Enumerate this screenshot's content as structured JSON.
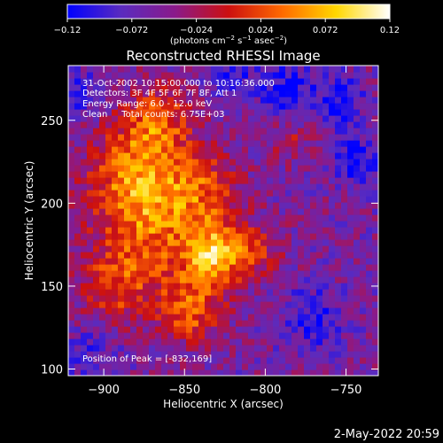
{
  "chart_data": {
    "type": "heatmap",
    "title": "Reconstructed RHESSI Image",
    "xlabel": "Heliocentric X (arcsec)",
    "ylabel": "Heliocentric Y (arcsec)",
    "xlim": [
      -922,
      -730
    ],
    "ylim": [
      96,
      283
    ],
    "x_ticks": [
      -900,
      -850,
      -800,
      -750
    ],
    "x_tick_labels": [
      "−900",
      "−850",
      "−800",
      "−750"
    ],
    "y_ticks": [
      100,
      150,
      200,
      250
    ],
    "y_tick_labels": [
      "100",
      "150",
      "200",
      "250"
    ],
    "colorbar": {
      "range": [
        -0.12,
        0.12
      ],
      "ticks": [
        -0.12,
        -0.072,
        -0.024,
        0.024,
        0.072,
        0.12
      ],
      "tick_labels": [
        "−0.12",
        "−0.072",
        "−0.024",
        "0.024",
        "0.072",
        "0.12"
      ],
      "unit_parts": [
        "(photons cm",
        "−2",
        " s",
        "−1",
        " asec",
        "−2",
        ")"
      ],
      "colors": [
        "#0000ff",
        "#5a2bbf",
        "#8a1a8a",
        "#cc1010",
        "#ff6a00",
        "#ffd700",
        "#ffffff"
      ]
    },
    "info_lines": [
      "31‐Oct‐2002 10:15:00.000 to 10:16:36.000",
      "Detectors: 3F 4F 5F 6F 7F 8F, Att 1",
      "Energy Range: 6.0 ‐ 12.0 keV",
      "Clean     Total counts: 6.75E+03"
    ],
    "peak_label": "Position of Peak = [‐832,169]",
    "peak": {
      "x": -832,
      "y": 169
    },
    "emission_blobs": [
      {
        "x": -832,
        "y": 169,
        "sigma": 14,
        "amp": 0.12
      },
      {
        "x": -872,
        "y": 190,
        "sigma": 24,
        "amp": 0.085
      },
      {
        "x": -880,
        "y": 222,
        "sigma": 20,
        "amp": 0.075
      },
      {
        "x": -866,
        "y": 250,
        "sigma": 14,
        "amp": 0.07
      },
      {
        "x": -846,
        "y": 136,
        "sigma": 13,
        "amp": 0.085
      },
      {
        "x": -890,
        "y": 150,
        "sigma": 16,
        "amp": 0.065
      },
      {
        "x": -838,
        "y": 210,
        "sigma": 15,
        "amp": 0.06
      },
      {
        "x": -806,
        "y": 172,
        "sigma": 12,
        "amp": 0.045
      },
      {
        "x": -786,
        "y": 240,
        "sigma": 9,
        "amp": 0.04
      },
      {
        "x": -744,
        "y": 226,
        "sigma": 9,
        "amp": -0.07
      },
      {
        "x": -788,
        "y": 268,
        "sigma": 12,
        "amp": -0.06
      },
      {
        "x": -754,
        "y": 262,
        "sigma": 10,
        "amp": -0.06
      },
      {
        "x": -770,
        "y": 130,
        "sigma": 13,
        "amp": -0.05
      },
      {
        "x": -915,
        "y": 265,
        "sigma": 10,
        "amp": -0.04
      },
      {
        "x": -908,
        "y": 110,
        "sigma": 12,
        "amp": -0.03
      },
      {
        "x": -822,
        "y": 276,
        "sigma": 9,
        "amp": -0.05
      }
    ]
  },
  "footer": {
    "timestamp": "2‐May‐2022 20:59"
  }
}
